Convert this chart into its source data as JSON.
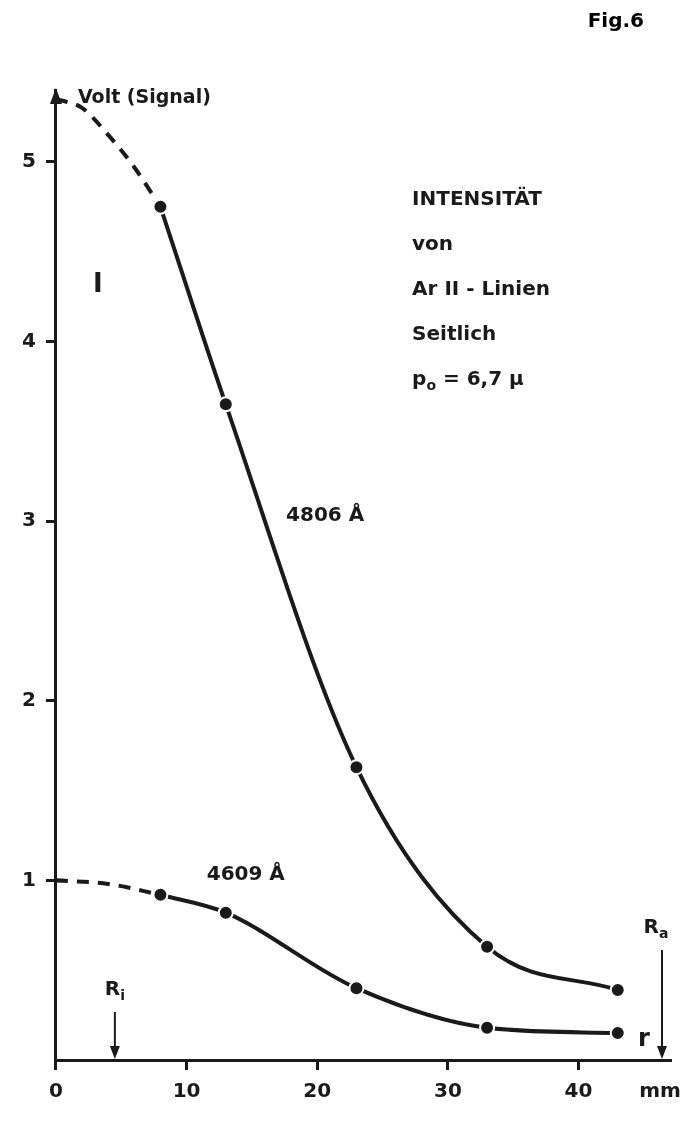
{
  "chart_data": {
    "type": "line",
    "title": "Fig.6",
    "ylabel": "I",
    "xlabel": "mm",
    "annotations": [
      "Volt (Signal)",
      "INTENSITÄT",
      "von",
      "Ar II - Linien",
      "Seitlich",
      "p$_{o}$ = 6,7 μ",
      "r",
      "R$_{i}$",
      "R$_{a}$"
    ],
    "series": [
      {
        "name": "4806 Å",
        "color": "#1a1a1a",
        "x": [
          8,
          13,
          23,
          33,
          43
        ],
        "values": [
          4.75,
          3.65,
          1.63,
          0.63,
          0.39
        ],
        "marker": "circle",
        "line_style": "solid"
      },
      {
        "color": "#1a1a1a",
        "x": [
          0,
          2,
          4,
          6,
          8
        ],
        "values": [
          5.35,
          5.3,
          5.15,
          4.97,
          4.75
        ],
        "marker": "none",
        "line_style": "dashed"
      },
      {
        "name": "4609 Å",
        "color": "#1a1a1a",
        "x": [
          8,
          13,
          23,
          33,
          43
        ],
        "values": [
          0.92,
          0.82,
          0.4,
          0.18,
          0.15
        ],
        "marker": "circle",
        "line_style": "solid"
      },
      {
        "color": "#1a1a1a",
        "x": [
          0,
          4,
          8
        ],
        "values": [
          1.0,
          0.98,
          0.92
        ],
        "marker": "none",
        "line_style": "dashed"
      }
    ],
    "xlim": [
      0,
      47
    ],
    "ylim": [
      0,
      5.4
    ],
    "xticks": [
      0,
      10,
      20,
      30,
      40
    ],
    "yticks": [
      1,
      2,
      3,
      4,
      5
    ],
    "grid": false,
    "legend": false
  }
}
